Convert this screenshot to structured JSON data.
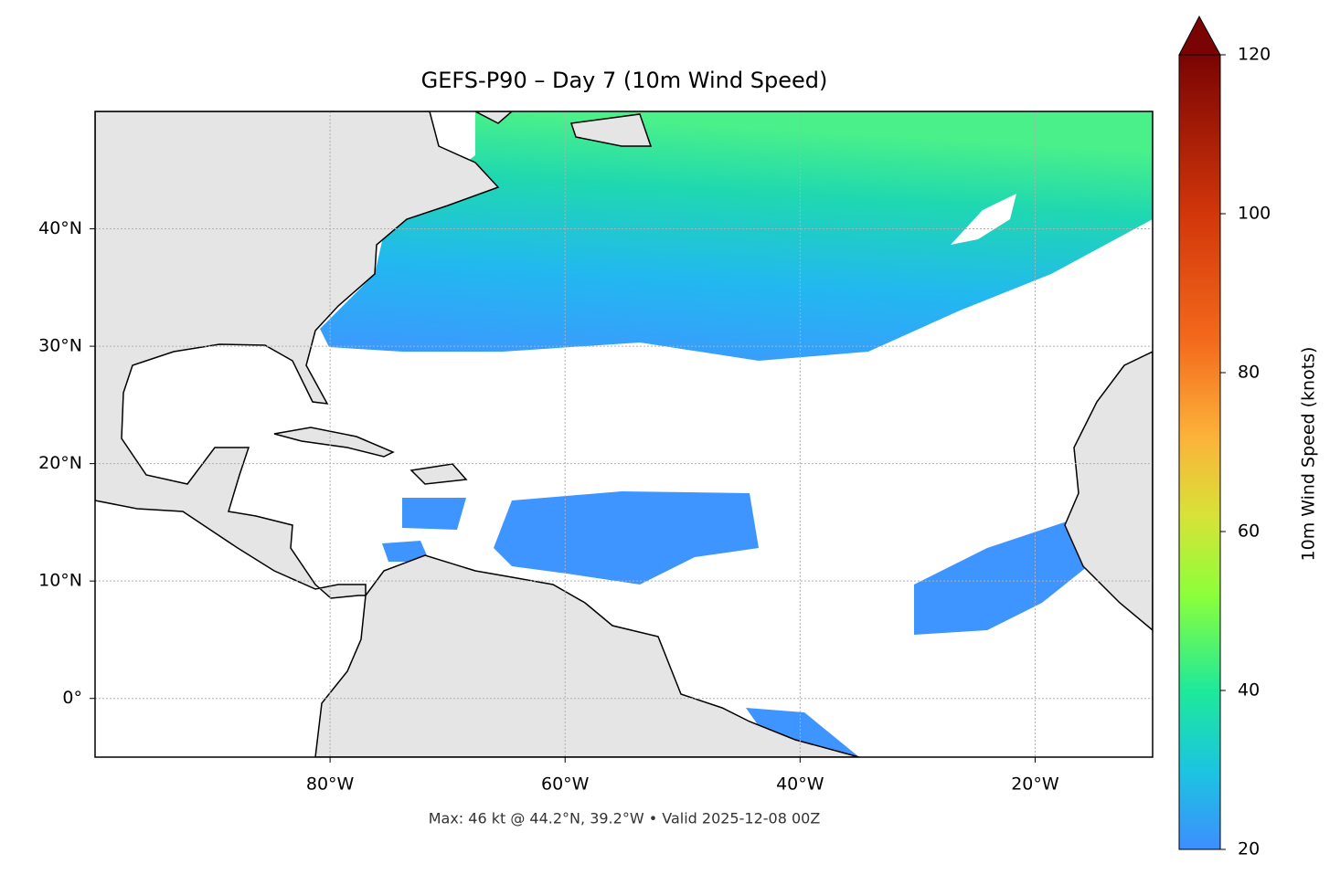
{
  "map": {
    "title": "GEFS-P90 – Day 7 (10m Wind Speed)",
    "xlim": [
      -100,
      -10
    ],
    "ylim": [
      -5,
      50
    ],
    "xticks": [
      {
        "value": -80,
        "label": "80°W"
      },
      {
        "value": -60,
        "label": "60°W"
      },
      {
        "value": -40,
        "label": "40°W"
      },
      {
        "value": -20,
        "label": "20°W"
      }
    ],
    "yticks": [
      {
        "value": 0,
        "label": "0°"
      },
      {
        "value": 10,
        "label": "10°N"
      },
      {
        "value": 20,
        "label": "20°N"
      },
      {
        "value": 30,
        "label": "30°N"
      },
      {
        "value": 40,
        "label": "40°N"
      }
    ],
    "grid": true,
    "colorbar": {
      "label": "10m Wind Speed (knots)",
      "lim": [
        20,
        120
      ],
      "ticks": [
        20,
        40,
        60,
        80,
        100,
        120
      ]
    },
    "footer": "Max: 46 kt @ 44.2°N, 39.2°W • Valid 2025-12-08 00Z"
  }
}
